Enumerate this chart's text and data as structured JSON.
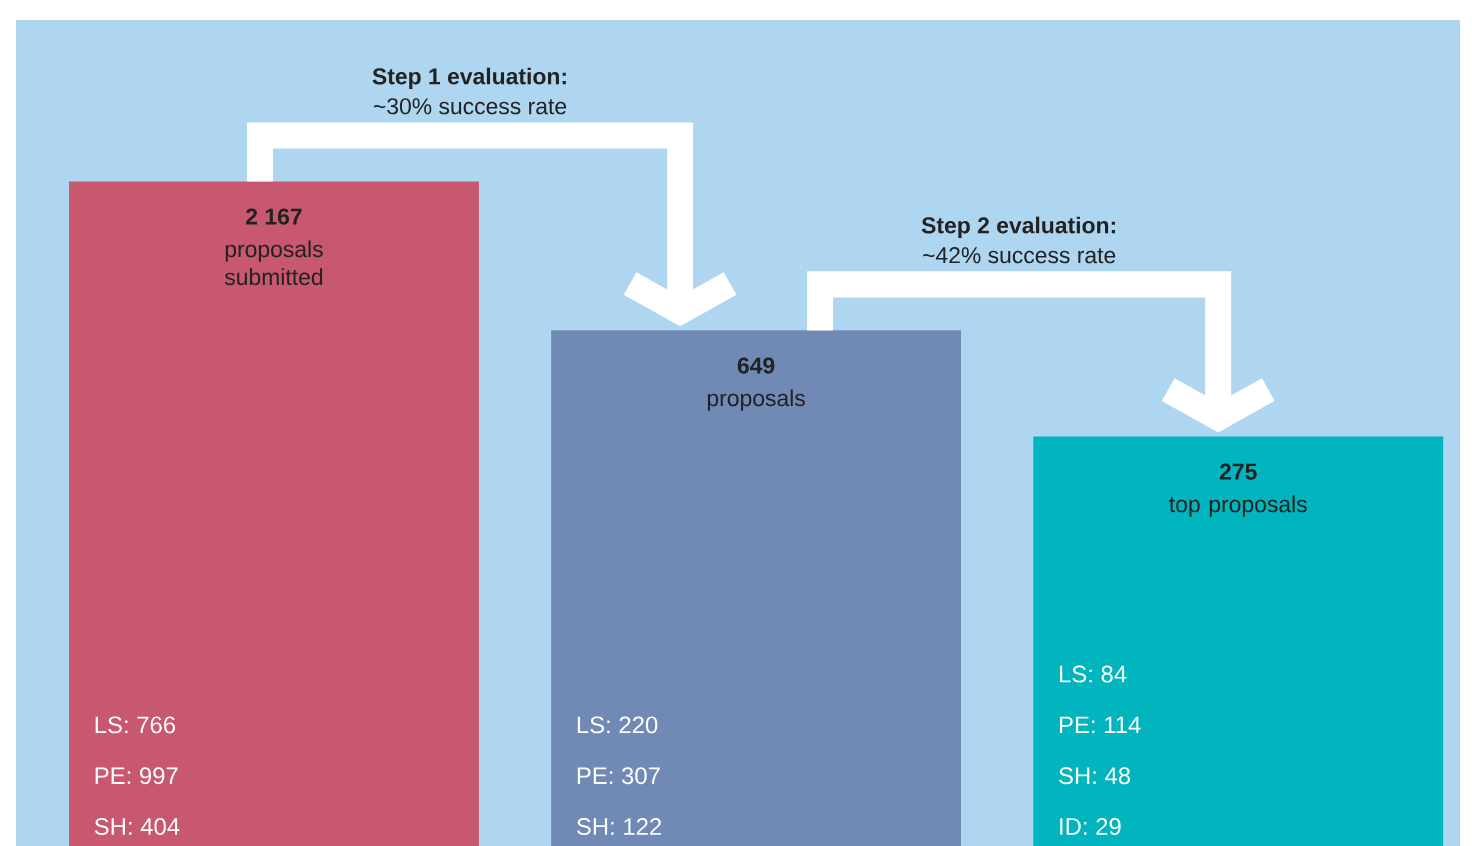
{
  "chart_data": {
    "type": "bar",
    "categories": [
      null,
      null,
      null
    ],
    "values": [
      2167,
      649,
      275
    ],
    "colors": [
      "#c8586f",
      "#7089b5",
      "#00b5bd"
    ],
    "value_labels": [
      "2 167",
      "649",
      "275"
    ],
    "log": true,
    "ylim": [
      10,
      8000
    ],
    "annotations": [
      "Step 1 evaluation:",
      "~30% success rate",
      "Step 2 evaluation:",
      "~42% success rate",
      "proposals submitted",
      "proposals",
      "top proposals",
      "LS: 766",
      "PE: 997",
      "SH: 404",
      "LS: 220",
      "PE: 307",
      "SH: 122",
      "LS: 84",
      "PE: 114",
      "SH: 48",
      "ID: 29"
    ]
  }
}
